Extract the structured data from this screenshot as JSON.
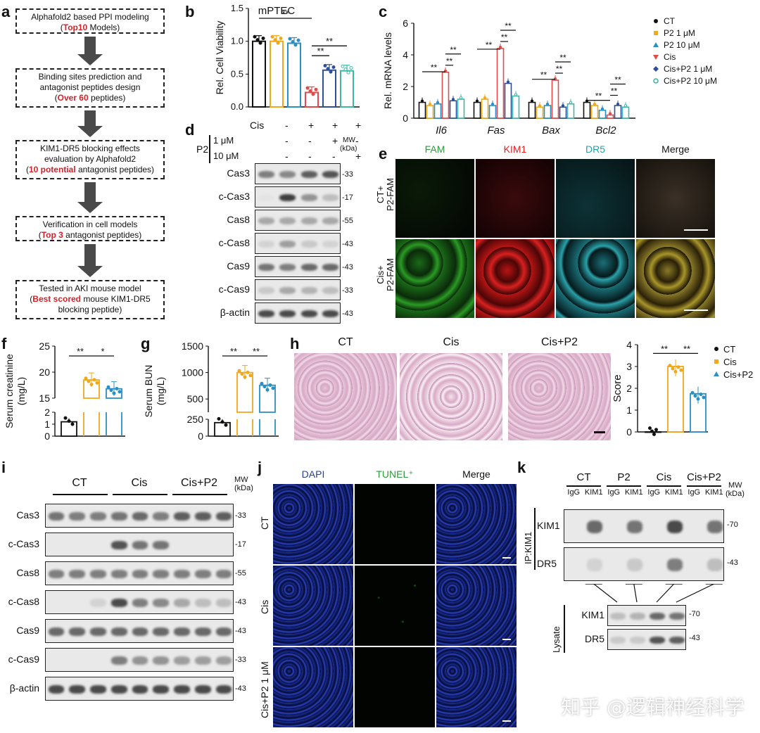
{
  "panels": {
    "a": "a",
    "b": "b",
    "c": "c",
    "d": "d",
    "e": "e",
    "f": "f",
    "g": "g",
    "h": "h",
    "i": "i",
    "j": "j",
    "k": "k"
  },
  "flow": [
    {
      "pre": "Alphafold2 based PPI modeling",
      "l2pre": "(",
      "red": "Top10",
      "l2post": " Models)"
    },
    {
      "pre": "Binding sites prediction and",
      "pre2": "antagonist peptides design",
      "l2pre": "(",
      "red": "Over 60",
      "l2post": " peptides)"
    },
    {
      "pre": "KIM1-DR5 blocking effects",
      "pre2": "evaluation by Alphafold2",
      "l2pre": "(",
      "red": "10 potential",
      "l2post": " antagonist peptides)"
    },
    {
      "pre": "Verification in cell models",
      "l2pre": "(",
      "red": "Top 3",
      "l2post": " antagonist peptides)"
    },
    {
      "pre": "Tested in AKI mouse model",
      "l2pre": "(",
      "red": "Best scored",
      "l2post": " mouse KIM1-DR5",
      "post2": "blocking peptide)"
    }
  ],
  "colors": {
    "ct": "#111111",
    "p2_1": "#f0a81c",
    "p2_10": "#2a8fc4",
    "cis": "#e34a4a",
    "cisp2_1": "#2f4f9a",
    "cisp2_10": "#3fb7a7"
  },
  "b_chart": {
    "title": "mPTEC",
    "ylabel": "Rel. Cell Viability",
    "ylim": [
      0,
      1.5
    ],
    "yticks": [
      "0.0",
      "0.5",
      "1.0",
      "1.5"
    ],
    "values": [
      1.0,
      1.0,
      0.97,
      0.22,
      0.56,
      0.55
    ],
    "sig": [
      "**",
      "**",
      "**"
    ]
  },
  "c_chart": {
    "ylabel": "Rel. mRNA levels",
    "ylim": [
      0,
      6
    ],
    "yticks": [
      "0",
      "2",
      "4",
      "6"
    ],
    "genes": [
      "Il6",
      "Fas",
      "Bax",
      "Bcl2"
    ],
    "series": [
      {
        "name": "CT",
        "values": [
          1.0,
          1.0,
          1.0,
          1.0
        ]
      },
      {
        "name": "P2 1 μM",
        "values": [
          0.8,
          1.2,
          0.7,
          0.8
        ]
      },
      {
        "name": "P2 10 μM",
        "values": [
          0.9,
          0.8,
          0.8,
          0.5
        ]
      },
      {
        "name": "Cis",
        "values": [
          2.9,
          4.4,
          2.4,
          0.2
        ]
      },
      {
        "name": "Cis+P2 1 μM",
        "values": [
          1.1,
          2.2,
          0.7,
          0.8
        ]
      },
      {
        "name": "Cis+P2 10 μM",
        "values": [
          1.2,
          1.4,
          0.9,
          0.7
        ]
      }
    ],
    "sig": "**"
  },
  "d_blot": {
    "cis_label": "Cis",
    "p2_label": "P2",
    "dose1": "1 μM",
    "dose2": "10 μM",
    "mw": "MW",
    "kda": "(kDa)",
    "cis_row": [
      "-",
      "+",
      "+",
      "+"
    ],
    "d1_row": [
      "-",
      "-",
      "+",
      "-"
    ],
    "d2_row": [
      "-",
      "-",
      "-",
      "+"
    ],
    "rows": [
      {
        "label": "Cas3",
        "mw": "-33"
      },
      {
        "label": "c-Cas3",
        "mw": "-17"
      },
      {
        "label": "Cas8",
        "mw": "-55"
      },
      {
        "label": "c-Cas8",
        "mw": "-43"
      },
      {
        "label": "Cas9",
        "mw": "-43"
      },
      {
        "label": "c-Cas9",
        "mw": "-33"
      },
      {
        "label": "β-actin",
        "mw": "-43"
      }
    ]
  },
  "e_if": {
    "cols": [
      "FAM",
      "KIM1",
      "DR5",
      "Merge"
    ],
    "rows": [
      "CT+\nP2-FAM",
      "Cis+\nP2-FAM"
    ]
  },
  "f_chart": {
    "ylabel": "Serum creatinine\n(mg/L)",
    "yticks_top": [
      "15",
      "20",
      "25"
    ],
    "yticks_bot": [
      "0",
      "1",
      "2"
    ],
    "values": [
      1.2,
      18.5,
      16.8
    ],
    "sig": [
      "**",
      "*"
    ]
  },
  "g_chart": {
    "ylabel": "Serum BUN\n(mg/L)",
    "yticks_top": [
      "500",
      "1000",
      "1500"
    ],
    "yticks_bot": [
      "0",
      "250"
    ],
    "values": [
      200,
      1000,
      760
    ],
    "sig": [
      "**",
      "**"
    ]
  },
  "h": {
    "he_labels": [
      "CT",
      "Cis",
      "Cis+P2"
    ],
    "ylabel": "Score",
    "yticks": [
      "0",
      "1",
      "2",
      "3",
      "4"
    ],
    "values": [
      0.0,
      3.0,
      1.75
    ],
    "sig": [
      "**",
      "**"
    ],
    "legend": [
      "CT",
      "Cis",
      "Cis+P2"
    ]
  },
  "i_blot": {
    "groups": [
      "CT",
      "Cis",
      "Cis+P2"
    ],
    "mw": "MW",
    "kda": "(kDa)",
    "rows": [
      {
        "label": "Cas3",
        "mw": "-33"
      },
      {
        "label": "c-Cas3",
        "mw": "-17"
      },
      {
        "label": "Cas8",
        "mw": "-55"
      },
      {
        "label": "c-Cas8",
        "mw": "-43"
      },
      {
        "label": "Cas9",
        "mw": "-43"
      },
      {
        "label": "c-Cas9",
        "mw": "-33"
      },
      {
        "label": "β-actin",
        "mw": "-43"
      }
    ]
  },
  "j_tunel": {
    "cols": [
      "DAPI",
      "TUNEL⁺",
      "Merge"
    ],
    "rows": [
      "CT",
      "Cis",
      "Cis+P2 1 μM"
    ]
  },
  "k_ip": {
    "groups": [
      "CT",
      "P2",
      "Cis",
      "Cis+P2"
    ],
    "lanes": [
      "IgG",
      "KIM1",
      "IgG",
      "KIM1",
      "IgG",
      "KIM1",
      "IgG",
      "KIM1"
    ],
    "mw": "MW",
    "kda": "(kDa)",
    "ip_label": "IP:KIM1",
    "lysate_label": "Lysate",
    "ip_rows": [
      {
        "label": "KIM1",
        "mw": "-70"
      },
      {
        "label": "DR5",
        "mw": "-43"
      }
    ],
    "lys_rows": [
      {
        "label": "KIM1",
        "mw": "-70"
      },
      {
        "label": "DR5",
        "mw": "-43"
      }
    ]
  },
  "watermark": "知乎 @逻辑神经科学"
}
